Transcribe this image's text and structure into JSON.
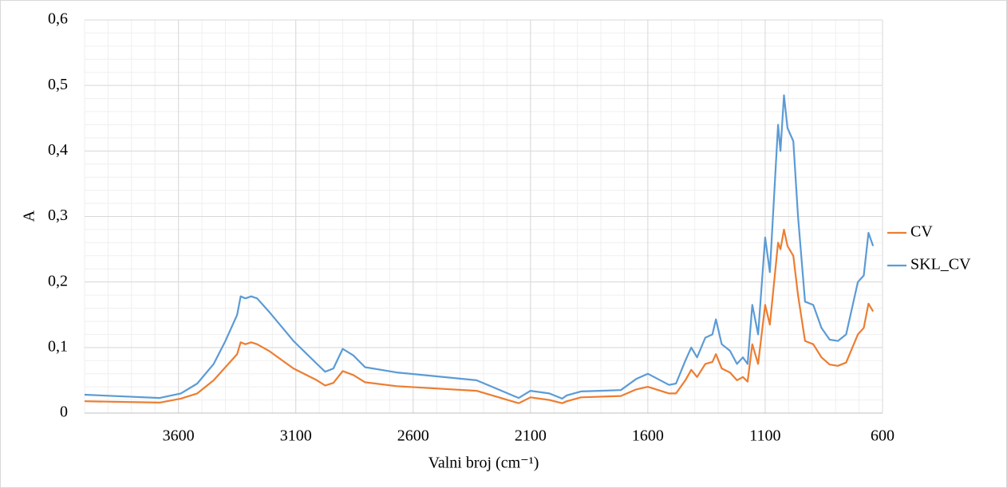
{
  "chart_data": {
    "type": "line",
    "x_label": "Valni broj (cm⁻¹)",
    "y_label": "A",
    "x": [
      4000,
      3680,
      3590,
      3520,
      3450,
      3400,
      3350,
      3335,
      3315,
      3290,
      3265,
      3215,
      3110,
      3010,
      2975,
      2940,
      2900,
      2855,
      2805,
      2670,
      2330,
      2150,
      2100,
      2020,
      1965,
      1945,
      1885,
      1715,
      1650,
      1600,
      1510,
      1480,
      1440,
      1415,
      1390,
      1355,
      1325,
      1310,
      1285,
      1250,
      1220,
      1195,
      1175,
      1155,
      1130,
      1100,
      1080,
      1045,
      1035,
      1020,
      1005,
      980,
      960,
      930,
      895,
      860,
      825,
      790,
      755,
      705,
      680,
      660,
      640
    ],
    "series": [
      {
        "name": "CV",
        "color": "#ed7d31",
        "values": [
          0.018,
          0.016,
          0.022,
          0.03,
          0.05,
          0.07,
          0.09,
          0.108,
          0.105,
          0.108,
          0.105,
          0.095,
          0.068,
          0.05,
          0.042,
          0.046,
          0.064,
          0.058,
          0.047,
          0.041,
          0.034,
          0.015,
          0.024,
          0.02,
          0.015,
          0.018,
          0.024,
          0.026,
          0.036,
          0.04,
          0.03,
          0.03,
          0.05,
          0.066,
          0.055,
          0.075,
          0.078,
          0.09,
          0.068,
          0.062,
          0.05,
          0.055,
          0.048,
          0.105,
          0.075,
          0.165,
          0.135,
          0.26,
          0.25,
          0.28,
          0.255,
          0.24,
          0.18,
          0.11,
          0.105,
          0.085,
          0.074,
          0.072,
          0.077,
          0.12,
          0.13,
          0.167,
          0.155
        ]
      },
      {
        "name": "SKL_CV",
        "color": "#5b9bd5",
        "values": [
          0.028,
          0.023,
          0.03,
          0.045,
          0.075,
          0.11,
          0.15,
          0.178,
          0.175,
          0.178,
          0.175,
          0.155,
          0.11,
          0.075,
          0.063,
          0.068,
          0.098,
          0.088,
          0.07,
          0.062,
          0.05,
          0.023,
          0.034,
          0.03,
          0.022,
          0.027,
          0.033,
          0.035,
          0.052,
          0.06,
          0.043,
          0.045,
          0.08,
          0.1,
          0.085,
          0.115,
          0.12,
          0.143,
          0.105,
          0.095,
          0.075,
          0.085,
          0.075,
          0.165,
          0.12,
          0.268,
          0.215,
          0.44,
          0.4,
          0.485,
          0.435,
          0.415,
          0.3,
          0.17,
          0.165,
          0.13,
          0.112,
          0.11,
          0.12,
          0.2,
          0.21,
          0.275,
          0.255
        ]
      }
    ],
    "xlim": [
      4000,
      600
    ],
    "xticks": [
      3600,
      3100,
      2600,
      2100,
      1600,
      1100,
      600
    ],
    "ylim": [
      0,
      0.6
    ],
    "yticks": [
      0,
      {
        "value": 0.1,
        "label": "0,1"
      },
      {
        "value": 0.2,
        "label": "0,2"
      },
      {
        "value": 0.3,
        "label": "0,3"
      },
      {
        "value": 0.4,
        "label": "0,4"
      },
      {
        "value": 0.5,
        "label": "0,5"
      },
      {
        "value": 0.6,
        "label": "0,6"
      }
    ],
    "grid": true,
    "legend": "right"
  }
}
